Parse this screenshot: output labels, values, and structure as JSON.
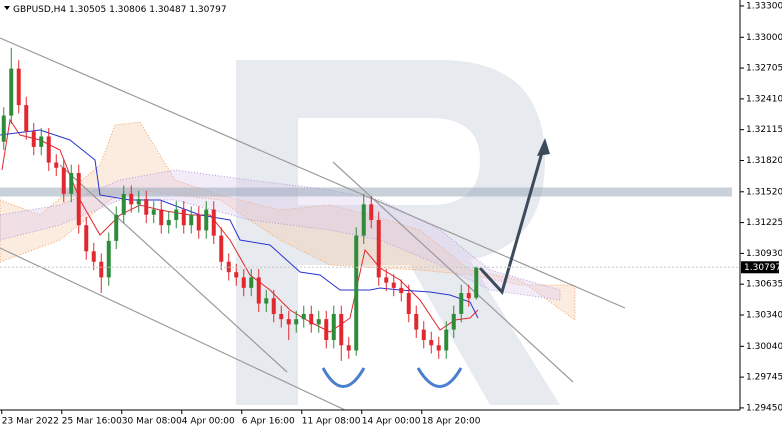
{
  "chart_data": {
    "type": "candlestick",
    "symbol": "GBPUSD,H4",
    "categories": [
      "23 Mar 2022",
      null,
      null,
      null,
      null,
      null,
      null,
      null,
      "25 Mar 16:00",
      null,
      null,
      null,
      null,
      null,
      null,
      null,
      "30 Mar 08:00",
      null,
      null,
      null,
      null,
      null,
      null,
      null,
      "4 Apr 00:00",
      null,
      null,
      null,
      null,
      null,
      null,
      null,
      "6 Apr 16:00",
      null,
      null,
      null,
      null,
      null,
      null,
      null,
      "11 Apr 08:00",
      null,
      null,
      null,
      null,
      null,
      null,
      null,
      "14 Apr 00:00",
      null,
      null,
      null,
      null,
      null,
      null,
      null,
      "18 Apr 20:00",
      null,
      null,
      null,
      null,
      null,
      null,
      null
    ],
    "open": [
      1.32,
      1.3225,
      1.327,
      1.3235,
      1.321,
      1.3195,
      1.3205,
      1.318,
      1.3175,
      1.315,
      1.317,
      1.312,
      1.3095,
      1.3085,
      1.307,
      1.3105,
      1.313,
      1.315,
      1.314,
      1.3145,
      1.313,
      1.3135,
      1.312,
      1.3125,
      1.3135,
      1.312,
      1.313,
      1.3115,
      1.3135,
      1.311,
      1.3085,
      1.3075,
      1.307,
      1.306,
      1.307,
      1.3045,
      1.305,
      1.3035,
      1.303,
      1.3025,
      1.303,
      1.3035,
      1.3025,
      1.303,
      1.301,
      1.3035,
      1.3005,
      1.3,
      1.311,
      1.314,
      1.3125,
      1.307,
      1.3065,
      1.306,
      1.3055,
      1.3035,
      1.302,
      1.301,
      1.3005,
      1.3,
      1.302,
      1.3035,
      1.3055,
      1.30505
    ],
    "high": [
      1.3233,
      1.329,
      1.3278,
      1.3243,
      1.3218,
      1.3213,
      1.3213,
      1.3188,
      1.3183,
      1.3178,
      1.3178,
      1.3128,
      1.3103,
      1.3093,
      1.3113,
      1.3138,
      1.3158,
      1.3158,
      1.3153,
      1.3153,
      1.3143,
      1.3143,
      1.3133,
      1.3143,
      1.3143,
      1.3138,
      1.3138,
      1.3143,
      1.3143,
      1.3118,
      1.3093,
      1.3083,
      1.3078,
      1.3078,
      1.3078,
      1.3058,
      1.3058,
      1.3043,
      1.3038,
      1.3038,
      1.3043,
      1.3043,
      1.3038,
      1.3038,
      1.3043,
      1.3043,
      1.3013,
      1.3118,
      1.315,
      1.3148,
      1.3133,
      1.3078,
      1.3073,
      1.3068,
      1.3063,
      1.3043,
      1.3028,
      1.3018,
      1.3013,
      1.3028,
      1.3043,
      1.3063,
      1.3063,
      1.30806
    ],
    "low": [
      1.3192,
      1.3217,
      1.3227,
      1.3202,
      1.3187,
      1.3187,
      1.3172,
      1.3167,
      1.3142,
      1.3142,
      1.3112,
      1.3087,
      1.3077,
      1.3055,
      1.3062,
      1.3097,
      1.3122,
      1.3132,
      1.3132,
      1.3122,
      1.3122,
      1.3112,
      1.3112,
      1.3117,
      1.3112,
      1.3112,
      1.3107,
      1.3107,
      1.3102,
      1.3077,
      1.3067,
      1.3062,
      1.3052,
      1.3052,
      1.3037,
      1.3037,
      1.3027,
      1.3022,
      1.301,
      1.3017,
      1.3022,
      1.3017,
      1.3017,
      1.3002,
      1.3002,
      1.299,
      1.2992,
      1.2995,
      1.3102,
      1.3117,
      1.3062,
      1.3057,
      1.3052,
      1.3047,
      1.3027,
      1.3012,
      1.3002,
      1.2997,
      1.2992,
      1.2992,
      1.3012,
      1.3027,
      1.3042,
      1.30487
    ],
    "close": [
      1.3225,
      1.327,
      1.3235,
      1.321,
      1.3195,
      1.3205,
      1.318,
      1.3175,
      1.315,
      1.317,
      1.312,
      1.3095,
      1.3085,
      1.307,
      1.3105,
      1.313,
      1.315,
      1.314,
      1.3145,
      1.313,
      1.3135,
      1.312,
      1.3125,
      1.3135,
      1.312,
      1.313,
      1.3115,
      1.3135,
      1.311,
      1.3085,
      1.3075,
      1.307,
      1.306,
      1.307,
      1.3045,
      1.305,
      1.3035,
      1.303,
      1.3025,
      1.303,
      1.3035,
      1.3025,
      1.303,
      1.301,
      1.3035,
      1.3005,
      1.3,
      1.311,
      1.314,
      1.3125,
      1.307,
      1.3065,
      1.306,
      1.3055,
      1.3035,
      1.302,
      1.301,
      1.3005,
      1.3,
      1.302,
      1.3035,
      1.3055,
      1.305,
      1.30797
    ],
    "up_color": "#2e8b3a",
    "down_color": "#e0282e",
    "ylim": [
      1.2943,
      1.33357
    ],
    "yticks": [
      {
        "value": 1.333,
        "label": "1.33300"
      },
      {
        "value": 1.33,
        "label": "1.33000"
      },
      1.32705,
      {
        "value": 1.3241,
        "label": "1.32410"
      },
      1.32115,
      {
        "value": 1.3182,
        "label": "1.31820"
      },
      {
        "value": 1.3152,
        "label": "1.31520"
      },
      1.31225,
      {
        "value": 1.3093,
        "label": "1.30930"
      },
      1.30635,
      {
        "value": 1.3034,
        "label": "1.30340"
      },
      {
        "value": 1.3004,
        "label": "1.30040"
      },
      1.29745,
      {
        "value": 1.2945,
        "label": "1.29450"
      }
    ]
  }
}
